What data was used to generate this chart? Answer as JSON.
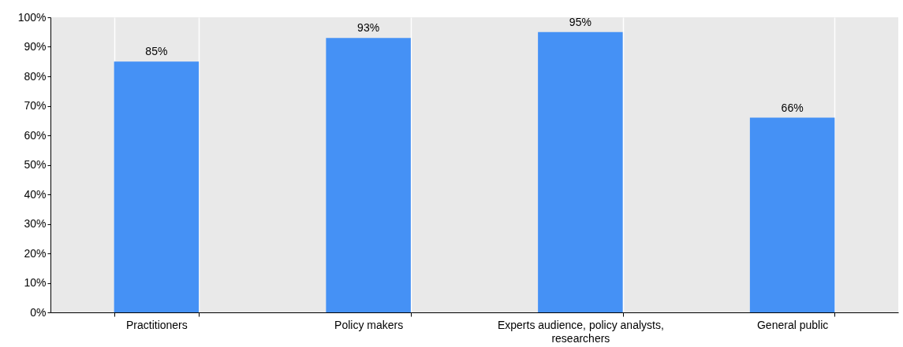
{
  "chart_data": {
    "type": "bar",
    "categories": [
      "Practitioners",
      "Policy makers",
      "Experts audience, policy analysts, researchers",
      "General public"
    ],
    "values": [
      85,
      93,
      95,
      66
    ],
    "value_labels": [
      "85%",
      "93%",
      "95%",
      "66%"
    ],
    "color": "#4591f5",
    "ylim": [
      0,
      100
    ],
    "yticks": [
      {
        "value": 0,
        "label": "0%"
      },
      {
        "value": 10,
        "label": "10%"
      },
      {
        "value": 20,
        "label": "20%"
      },
      {
        "value": 30,
        "label": "30%"
      },
      {
        "value": 40,
        "label": "40%"
      },
      {
        "value": 50,
        "label": "50%"
      },
      {
        "value": 60,
        "label": "60%"
      },
      {
        "value": 70,
        "label": "70%"
      },
      {
        "value": 80,
        "label": "80%"
      },
      {
        "value": 90,
        "label": "90%"
      },
      {
        "value": 100,
        "label": "100%"
      }
    ],
    "grid": "x"
  }
}
